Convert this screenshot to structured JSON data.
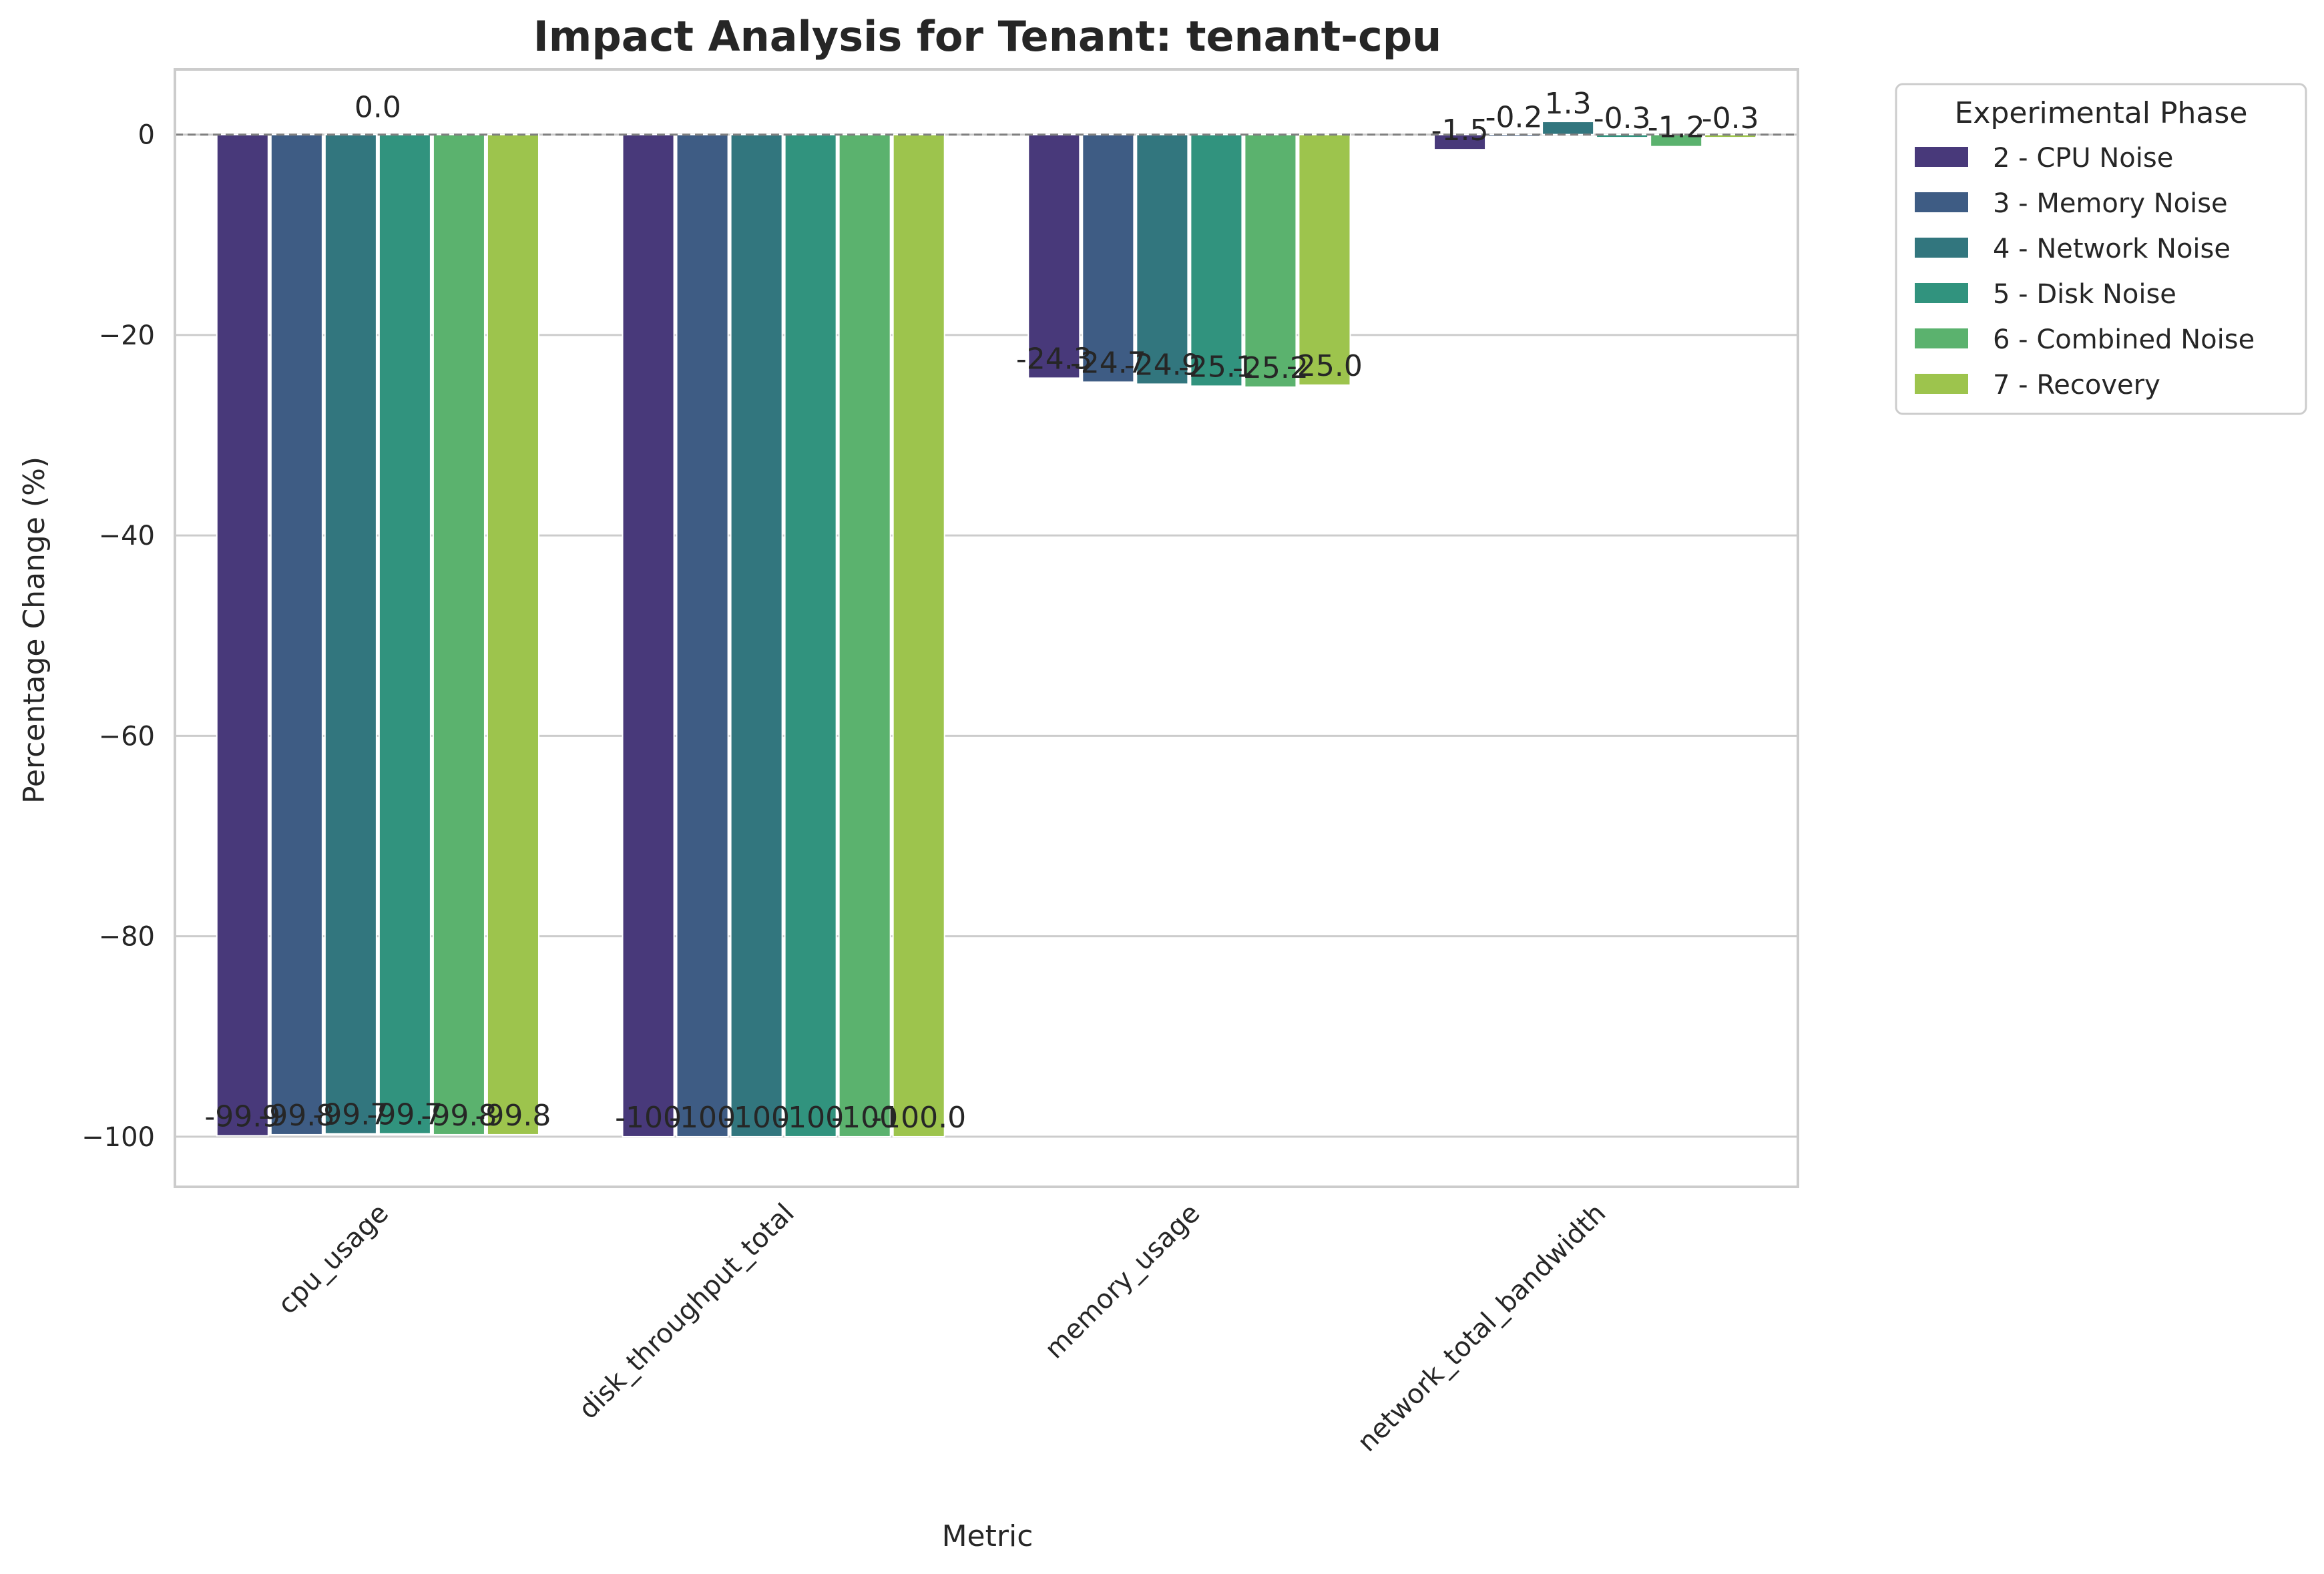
{
  "chart_data": {
    "type": "bar",
    "title": "Impact Analysis for Tenant: tenant-cpu",
    "xlabel": "Metric",
    "ylabel": "Percentage Change (%)",
    "ylim": [
      -105,
      6.5
    ],
    "yticks": [
      0,
      -20,
      -40,
      -60,
      -80,
      -100
    ],
    "ytick_labels": [
      "0",
      "−20",
      "−40",
      "−60",
      "−80",
      "−100"
    ],
    "categories": [
      "cpu_usage",
      "disk_throughput_total",
      "memory_usage",
      "network_total_bandwidth"
    ],
    "grid": true,
    "zero_reference_line": true,
    "legend": {
      "title": "Experimental Phase",
      "placement": "outside-top-right"
    },
    "series": [
      {
        "name": "2 - CPU Noise",
        "color": "#48397a",
        "values": [
          -99.9,
          -100.0,
          -24.3,
          -1.5
        ],
        "labels": [
          "-99.9",
          "-100",
          "-24.3",
          "-1.5"
        ]
      },
      {
        "name": "3 - Memory Noise",
        "color": "#3e5c84",
        "values": [
          -99.8,
          -100.0,
          -24.7,
          -0.2
        ],
        "labels": [
          "-99.8",
          "-100",
          "-24.7",
          "-0.2"
        ]
      },
      {
        "name": "4 - Network Noise",
        "color": "#32767e",
        "values": [
          -99.7,
          -100.0,
          -24.9,
          1.3
        ],
        "labels": [
          "-99.7",
          "-100",
          "-24.9",
          "1.3"
        ]
      },
      {
        "name": "5 - Disk Noise",
        "color": "#31937e",
        "values": [
          -99.7,
          -100.0,
          -25.1,
          -0.3
        ],
        "labels": [
          "-99.7",
          "-100",
          "-25.1",
          "-0.3"
        ]
      },
      {
        "name": "6 - Combined Noise",
        "color": "#5bb26e",
        "values": [
          -99.8,
          -100.0,
          -25.2,
          -1.2
        ],
        "labels": [
          "-99.8",
          "-100",
          "-25.2",
          "-1.2"
        ]
      },
      {
        "name": "7 - Recovery",
        "color": "#9dc44d",
        "values": [
          -99.8,
          -100.0,
          -25.0,
          -0.3
        ],
        "labels": [
          "-99.8",
          "-100.0",
          "-25.0",
          "-0.3"
        ]
      }
    ],
    "annotations": [
      {
        "text": "0.0",
        "x": "cpu_usage",
        "y": 0.0
      }
    ]
  }
}
